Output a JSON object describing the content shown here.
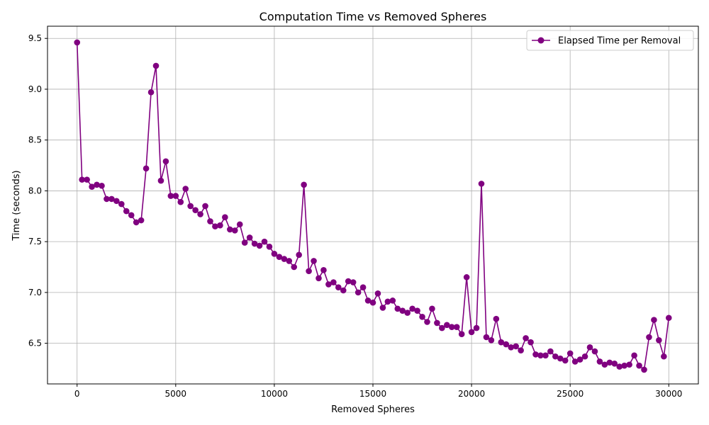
{
  "chart_data": {
    "type": "line",
    "title": "Computation Time vs Removed Spheres",
    "xlabel": "Removed Spheres",
    "ylabel": "Time (seconds)",
    "xlim": [
      -1500,
      31500
    ],
    "ylim": [
      6.1,
      9.62
    ],
    "xticks": [
      0,
      5000,
      10000,
      15000,
      20000,
      25000,
      30000
    ],
    "yticks": [
      6.5,
      7.0,
      7.5,
      8.0,
      8.5,
      9.0,
      9.5
    ],
    "xtick_labels": [
      "0",
      "5000",
      "10000",
      "15000",
      "20000",
      "25000",
      "30000"
    ],
    "ytick_labels": [
      "6.5",
      "7.0",
      "7.5",
      "8.0",
      "8.5",
      "9.0",
      "9.5"
    ],
    "grid": true,
    "legend": "top-right",
    "series": [
      {
        "name": "Elapsed Time per Removal",
        "color": "#800080",
        "marker": "circle",
        "x": [
          0,
          250,
          500,
          750,
          1000,
          1250,
          1500,
          1750,
          2000,
          2250,
          2500,
          2750,
          3000,
          3250,
          3500,
          3750,
          4000,
          4250,
          4500,
          4750,
          5000,
          5250,
          5500,
          5750,
          6000,
          6250,
          6500,
          6750,
          7000,
          7250,
          7500,
          7750,
          8000,
          8250,
          8500,
          8750,
          9000,
          9250,
          9500,
          9750,
          10000,
          10250,
          10500,
          10750,
          11000,
          11250,
          11500,
          11750,
          12000,
          12250,
          12500,
          12750,
          13000,
          13250,
          13500,
          13750,
          14000,
          14250,
          14500,
          14750,
          15000,
          15250,
          15500,
          15750,
          16000,
          16250,
          16500,
          16750,
          17000,
          17250,
          17500,
          17750,
          18000,
          18250,
          18500,
          18750,
          19000,
          19250,
          19500,
          19750,
          20000,
          20250,
          20500,
          20750,
          21000,
          21250,
          21500,
          21750,
          22000,
          22250,
          22500,
          22750,
          23000,
          23250,
          23500,
          23750,
          24000,
          24250,
          24500,
          24750,
          25000,
          25250,
          25500,
          25750,
          26000,
          26250,
          26500,
          26750,
          27000,
          27250,
          27500,
          27750,
          28000,
          28250,
          28500,
          28750,
          29000,
          29250,
          29500,
          29750,
          30000
        ],
        "y": [
          9.46,
          8.11,
          8.11,
          8.04,
          8.06,
          8.05,
          7.92,
          7.92,
          7.9,
          7.87,
          7.8,
          7.76,
          7.69,
          7.71,
          8.22,
          8.97,
          9.23,
          8.1,
          8.29,
          7.95,
          7.95,
          7.89,
          8.02,
          7.85,
          7.81,
          7.77,
          7.85,
          7.7,
          7.65,
          7.66,
          7.74,
          7.62,
          7.61,
          7.67,
          7.49,
          7.54,
          7.48,
          7.46,
          7.5,
          7.45,
          7.38,
          7.35,
          7.33,
          7.31,
          7.25,
          7.37,
          8.06,
          7.21,
          7.31,
          7.14,
          7.22,
          7.08,
          7.1,
          7.05,
          7.02,
          7.11,
          7.1,
          7.0,
          7.05,
          6.92,
          6.9,
          6.99,
          6.85,
          6.91,
          6.92,
          6.84,
          6.82,
          6.8,
          6.84,
          6.82,
          6.76,
          6.71,
          6.84,
          6.7,
          6.65,
          6.68,
          6.66,
          6.66,
          6.59,
          7.15,
          6.61,
          6.65,
          8.07,
          6.56,
          6.53,
          6.74,
          6.51,
          6.49,
          6.46,
          6.47,
          6.43,
          6.55,
          6.51,
          6.39,
          6.38,
          6.38,
          6.42,
          6.37,
          6.35,
          6.33,
          6.4,
          6.32,
          6.34,
          6.37,
          6.46,
          6.42,
          6.32,
          6.29,
          6.31,
          6.3,
          6.27,
          6.28,
          6.29,
          6.38,
          6.28,
          6.24,
          6.56,
          6.73,
          6.53,
          6.37,
          6.75
        ]
      }
    ]
  }
}
